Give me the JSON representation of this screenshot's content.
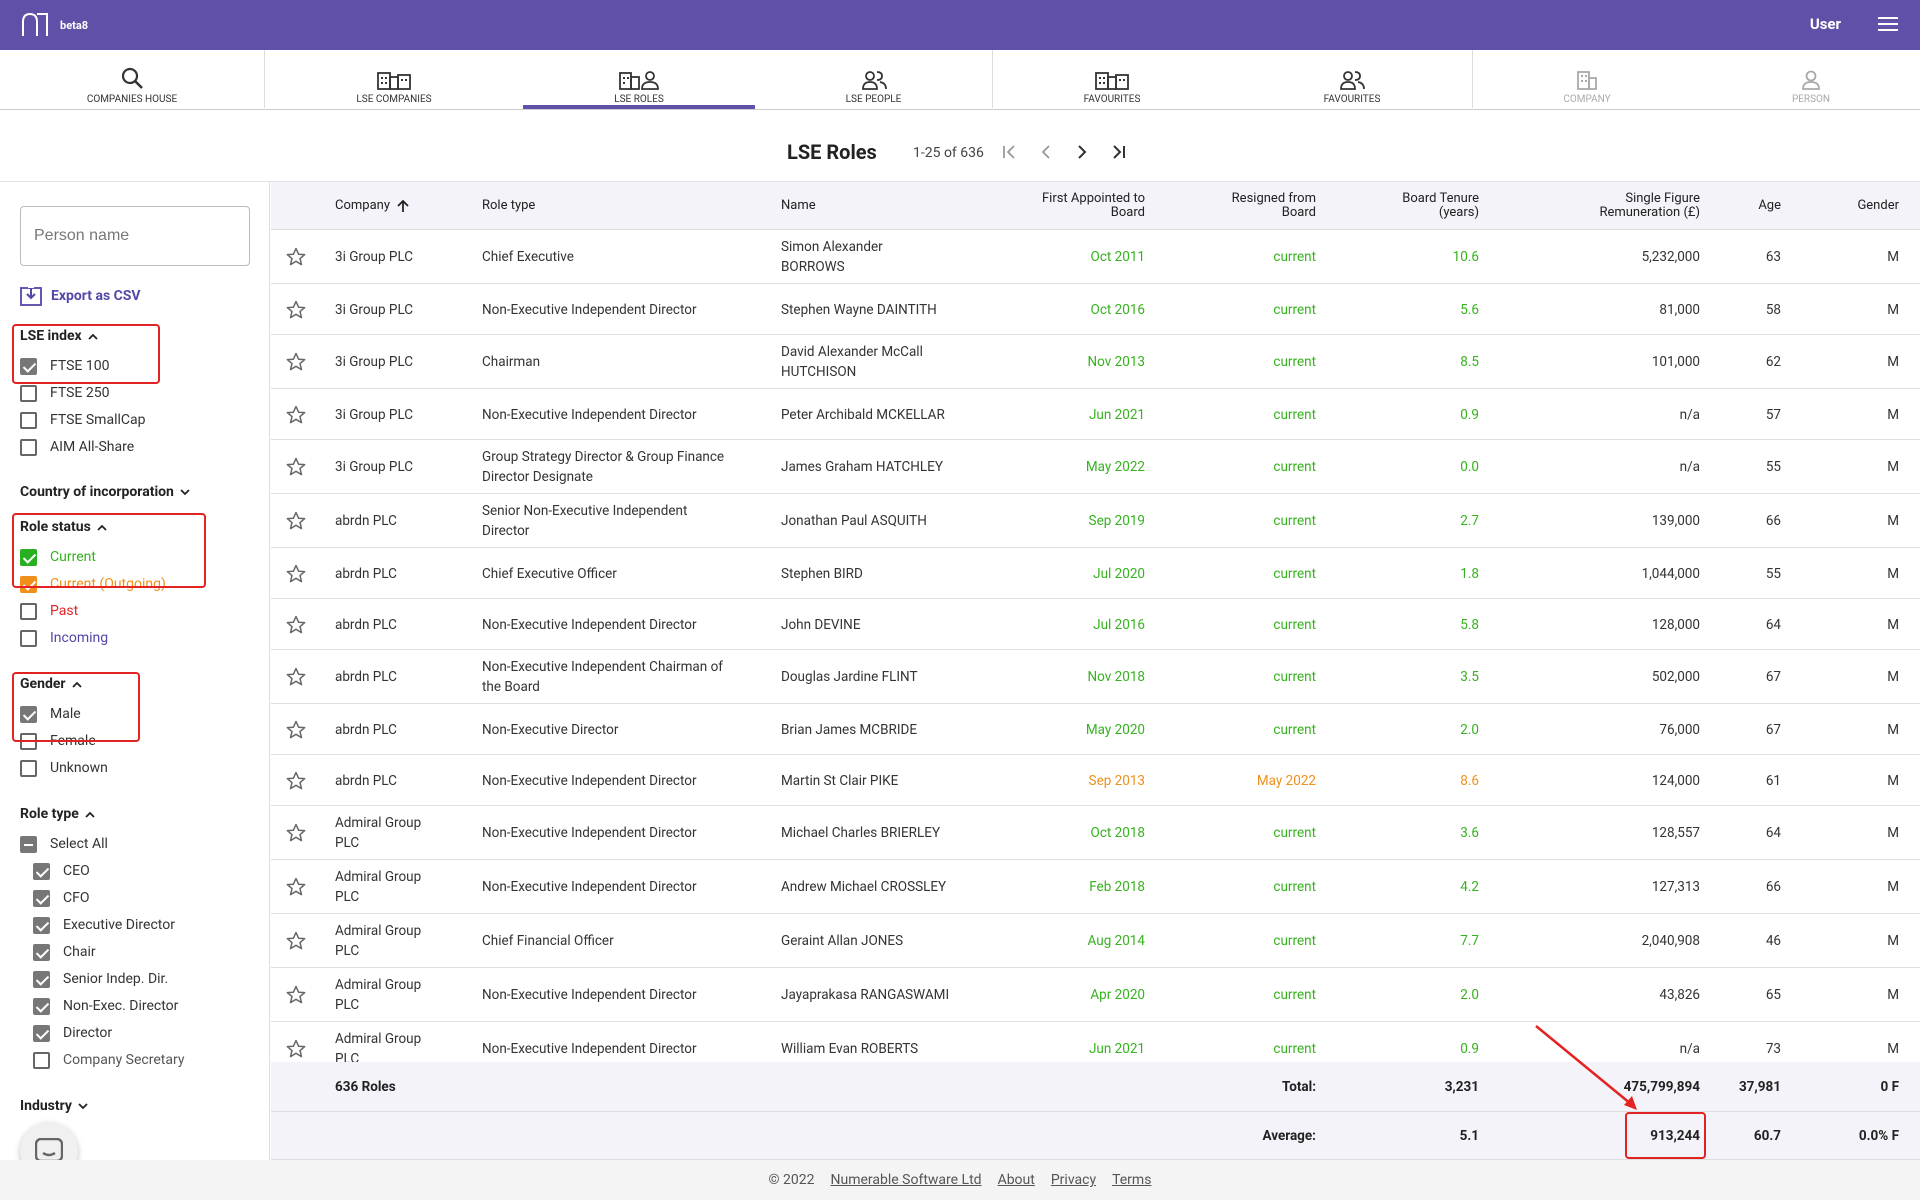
{
  "header": {
    "brand_tag": "beta8",
    "user_label": "User"
  },
  "tabs": [
    {
      "label": "COMPANIES HOUSE"
    },
    {
      "label": "LSE COMPANIES"
    },
    {
      "label": "LSE ROLES"
    },
    {
      "label": "LSE PEOPLE"
    },
    {
      "label": "FAVOURITES"
    },
    {
      "label": "FAVOURITES"
    },
    {
      "label": "COMPANY"
    },
    {
      "label": "PERSON"
    }
  ],
  "page": {
    "title": "LSE Roles",
    "pager_text": "1-25 of 636"
  },
  "sidebar": {
    "search_placeholder": "Person name",
    "export_label": "Export as CSV",
    "lse_index": {
      "title": "LSE index",
      "items": [
        "FTSE 100",
        "FTSE 250",
        "FTSE SmallCap",
        "AIM All-Share"
      ]
    },
    "country": {
      "title": "Country of incorporation"
    },
    "role_status": {
      "title": "Role status",
      "items": [
        "Current",
        "Current (Outgoing)",
        "Past",
        "Incoming"
      ]
    },
    "gender": {
      "title": "Gender",
      "items": [
        "Male",
        "Female",
        "Unknown"
      ]
    },
    "role_type": {
      "title": "Role type",
      "select_all": "Select All",
      "items": [
        "CEO",
        "CFO",
        "Executive Director",
        "Chair",
        "Senior Indep. Dir.",
        "Non-Exec. Director",
        "Director",
        "Company Secretary"
      ]
    },
    "industry": {
      "title": "Industry"
    }
  },
  "table": {
    "headers": {
      "company": "Company",
      "role_type": "Role type",
      "name": "Name",
      "first_appointed_1": "First Appointed to",
      "first_appointed_2": "Board",
      "resigned_1": "Resigned from",
      "resigned_2": "Board",
      "tenure_1": "Board Tenure",
      "tenure_2": "(years)",
      "remun_1": "Single Figure",
      "remun_2": "Remuneration (£)",
      "age": "Age",
      "gender": "Gender"
    },
    "rows": [
      {
        "company": [
          "3i Group PLC"
        ],
        "role": [
          "Chief Executive"
        ],
        "name": [
          "Simon Alexander",
          "BORROWS"
        ],
        "appointed": "Oct 2011",
        "resigned": "current",
        "tenure": "10.6",
        "remun": "5,232,000",
        "age": "63",
        "gender": "M"
      },
      {
        "company": [
          "3i Group PLC"
        ],
        "role": [
          "Non-Executive Independent Director"
        ],
        "name": [
          "Stephen Wayne DAINTITH"
        ],
        "appointed": "Oct 2016",
        "resigned": "current",
        "tenure": "5.6",
        "remun": "81,000",
        "age": "58",
        "gender": "M"
      },
      {
        "company": [
          "3i Group PLC"
        ],
        "role": [
          "Chairman"
        ],
        "name": [
          "David Alexander McCall",
          "HUTCHISON"
        ],
        "appointed": "Nov 2013",
        "resigned": "current",
        "tenure": "8.5",
        "remun": "101,000",
        "age": "62",
        "gender": "M"
      },
      {
        "company": [
          "3i Group PLC"
        ],
        "role": [
          "Non-Executive Independent Director"
        ],
        "name": [
          "Peter Archibald MCKELLAR"
        ],
        "appointed": "Jun 2021",
        "resigned": "current",
        "tenure": "0.9",
        "remun": "n/a",
        "age": "57",
        "gender": "M"
      },
      {
        "company": [
          "3i Group PLC"
        ],
        "role": [
          "Group Strategy Director & Group Finance",
          "Director Designate"
        ],
        "name": [
          "James Graham HATCHLEY"
        ],
        "appointed": "May 2022",
        "resigned": "current",
        "tenure": "0.0",
        "remun": "n/a",
        "age": "55",
        "gender": "M"
      },
      {
        "company": [
          "abrdn PLC"
        ],
        "role": [
          "Senior Non-Executive Independent",
          "Director"
        ],
        "name": [
          "Jonathan Paul ASQUITH"
        ],
        "appointed": "Sep 2019",
        "resigned": "current",
        "tenure": "2.7",
        "remun": "139,000",
        "age": "66",
        "gender": "M"
      },
      {
        "company": [
          "abrdn PLC"
        ],
        "role": [
          "Chief Executive Officer"
        ],
        "name": [
          "Stephen BIRD"
        ],
        "appointed": "Jul 2020",
        "resigned": "current",
        "tenure": "1.8",
        "remun": "1,044,000",
        "age": "55",
        "gender": "M"
      },
      {
        "company": [
          "abrdn PLC"
        ],
        "role": [
          "Non-Executive Independent Director"
        ],
        "name": [
          "John DEVINE"
        ],
        "appointed": "Jul 2016",
        "resigned": "current",
        "tenure": "5.8",
        "remun": "128,000",
        "age": "64",
        "gender": "M"
      },
      {
        "company": [
          "abrdn PLC"
        ],
        "role": [
          "Non-Executive Independent Chairman of",
          "the Board"
        ],
        "name": [
          "Douglas Jardine FLINT"
        ],
        "appointed": "Nov 2018",
        "resigned": "current",
        "tenure": "3.5",
        "remun": "502,000",
        "age": "67",
        "gender": "M"
      },
      {
        "company": [
          "abrdn PLC"
        ],
        "role": [
          "Non-Executive Director"
        ],
        "name": [
          "Brian James MCBRIDE"
        ],
        "appointed": "May 2020",
        "resigned": "current",
        "tenure": "2.0",
        "remun": "76,000",
        "age": "67",
        "gender": "M"
      },
      {
        "company": [
          "abrdn PLC"
        ],
        "role": [
          "Non-Executive Independent Director"
        ],
        "name": [
          "Martin St Clair PIKE"
        ],
        "appointed": "Sep 2013",
        "resigned": "May 2022",
        "tenure": "8.6",
        "remun": "124,000",
        "age": "61",
        "gender": "M",
        "outgoing": true
      },
      {
        "company": [
          "Admiral Group",
          "PLC"
        ],
        "role": [
          "Non-Executive Independent Director"
        ],
        "name": [
          "Michael Charles BRIERLEY"
        ],
        "appointed": "Oct 2018",
        "resigned": "current",
        "tenure": "3.6",
        "remun": "128,557",
        "age": "64",
        "gender": "M"
      },
      {
        "company": [
          "Admiral Group",
          "PLC"
        ],
        "role": [
          "Non-Executive Independent Director"
        ],
        "name": [
          "Andrew Michael CROSSLEY"
        ],
        "appointed": "Feb 2018",
        "resigned": "current",
        "tenure": "4.2",
        "remun": "127,313",
        "age": "66",
        "gender": "M"
      },
      {
        "company": [
          "Admiral Group",
          "PLC"
        ],
        "role": [
          "Chief Financial Officer"
        ],
        "name": [
          "Geraint Allan JONES"
        ],
        "appointed": "Aug 2014",
        "resigned": "current",
        "tenure": "7.7",
        "remun": "2,040,908",
        "age": "46",
        "gender": "M"
      },
      {
        "company": [
          "Admiral Group",
          "PLC"
        ],
        "role": [
          "Non-Executive Independent Director"
        ],
        "name": [
          "Jayaprakasa RANGASWAMI"
        ],
        "appointed": "Apr 2020",
        "resigned": "current",
        "tenure": "2.0",
        "remun": "43,826",
        "age": "65",
        "gender": "M"
      },
      {
        "company": [
          "Admiral Group",
          "PLC"
        ],
        "role": [
          "Non-Executive Independent Director"
        ],
        "name": [
          "William Evan ROBERTS"
        ],
        "appointed": "Jun 2021",
        "resigned": "current",
        "tenure": "0.9",
        "remun": "n/a",
        "age": "73",
        "gender": "M"
      }
    ],
    "total": {
      "count_label": "636 Roles",
      "label": "Total:",
      "tenure": "3,231",
      "remun": "475,799,894",
      "age": "37,981",
      "gender": "0 F"
    },
    "average": {
      "label": "Average:",
      "tenure": "5.1",
      "remun": "913,244",
      "age": "60.7",
      "gender": "0.0% F"
    }
  },
  "footer": {
    "copyright": "© 2022",
    "company_link": "Numerable Software Ltd",
    "about": "About",
    "privacy": "Privacy",
    "terms": "Terms"
  },
  "colors": {
    "accent": "#6050a8",
    "current": "#36b31e",
    "outgoing": "#f0901c",
    "past": "#e32222",
    "incoming": "#5248a8",
    "highlight": "#e32222"
  }
}
